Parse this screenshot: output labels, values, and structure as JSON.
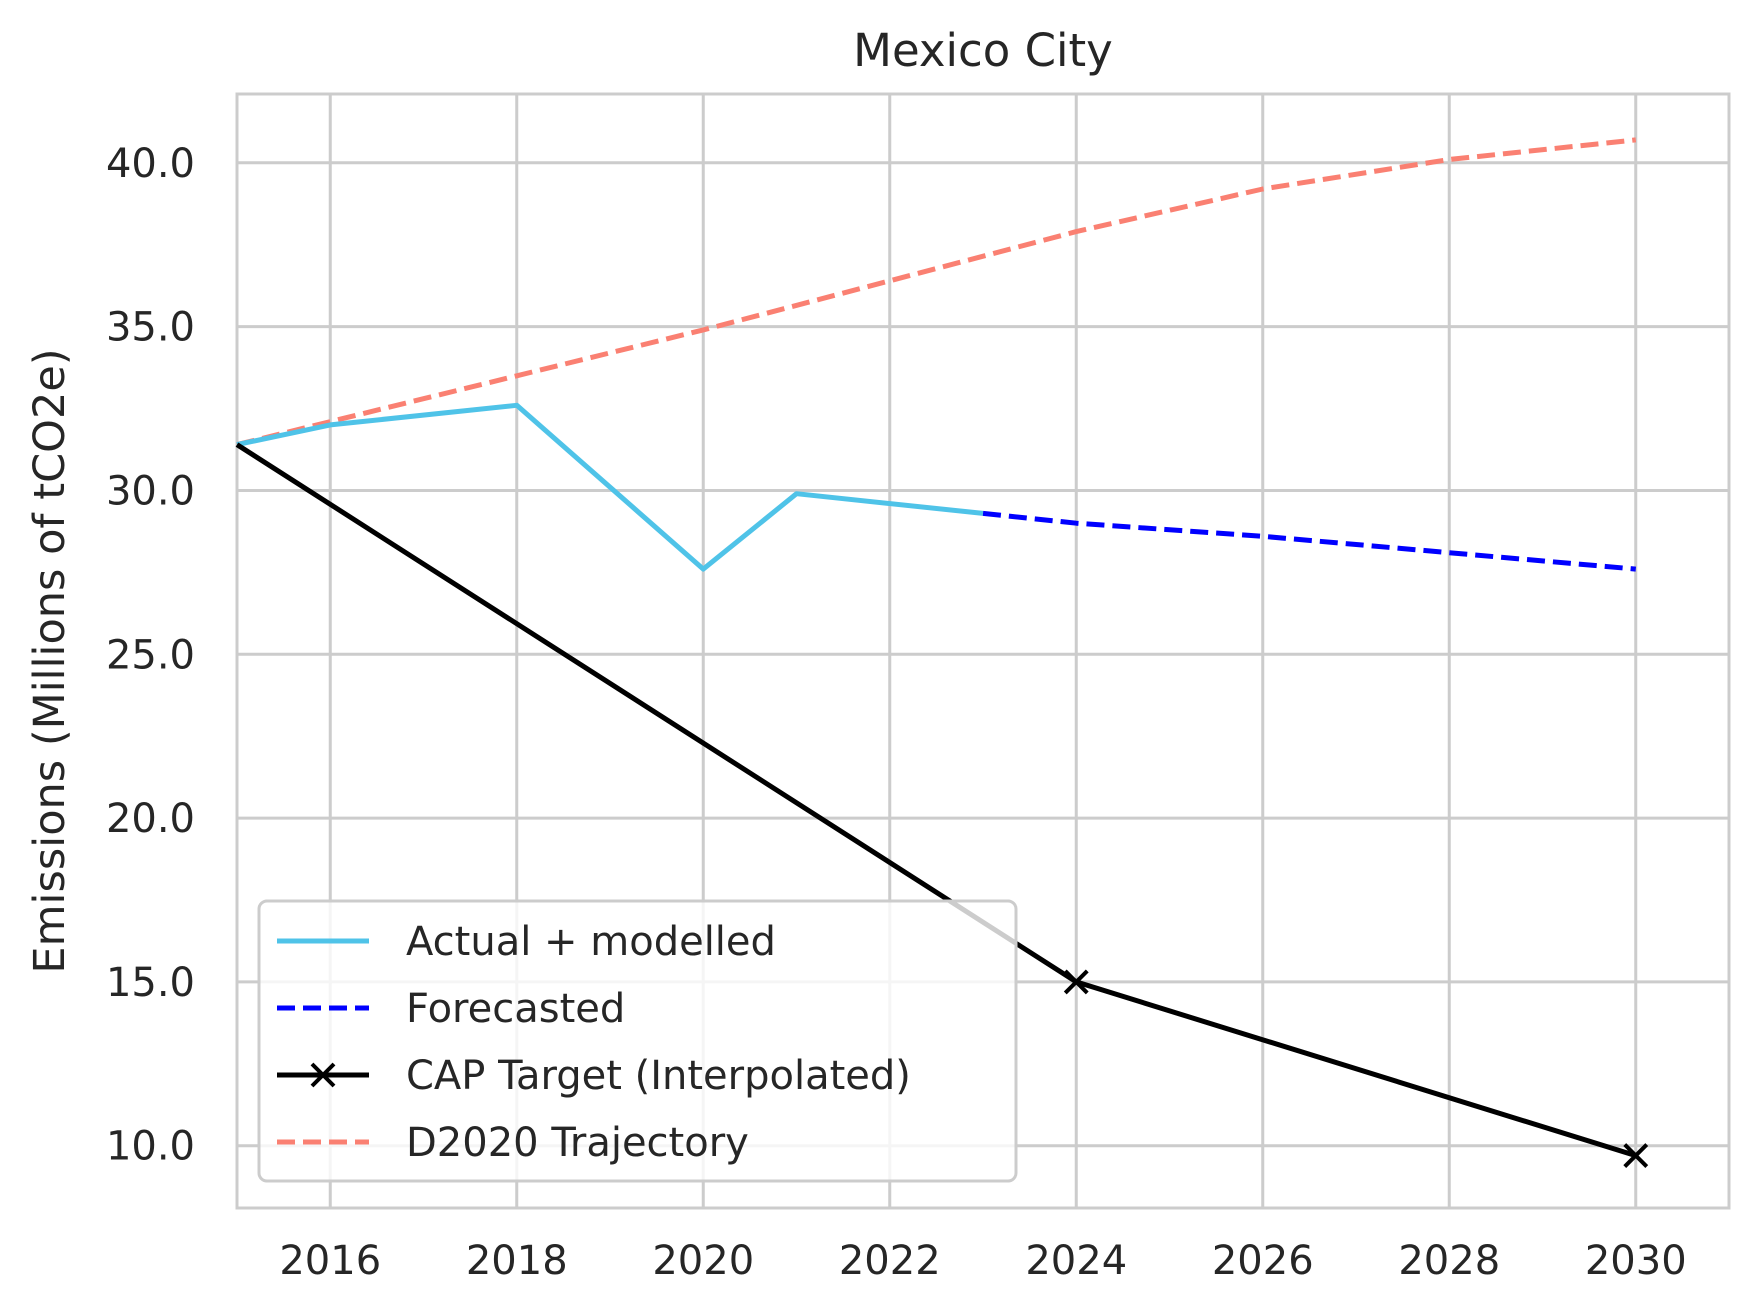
{
  "chart_data": {
    "type": "line",
    "title": "Mexico City",
    "xlabel": "",
    "ylabel": "Emissions (Millions of tCO2e)",
    "xlim": [
      2015,
      2031
    ],
    "ylim": [
      8.1,
      42.1
    ],
    "xticks": [
      2016,
      2018,
      2020,
      2022,
      2024,
      2026,
      2028,
      2030
    ],
    "xtick_labels": [
      "2016",
      "2018",
      "2020",
      "2022",
      "2024",
      "2026",
      "2028",
      "2030"
    ],
    "yticks": [
      10,
      15,
      20,
      25,
      30,
      35,
      40
    ],
    "ytick_labels": [
      "10.0",
      "15.0",
      "20.0",
      "25.0",
      "30.0",
      "35.0",
      "40.0"
    ],
    "grid": true,
    "legend_position": "lower-left",
    "series": [
      {
        "name": "Actual + modelled",
        "color": "#4fc3e8",
        "style": "solid",
        "marker": "none",
        "x": [
          2015,
          2016,
          2018,
          2020,
          2021,
          2023
        ],
        "y": [
          31.4,
          32.0,
          32.6,
          27.6,
          29.9,
          29.3
        ]
      },
      {
        "name": "Forecasted",
        "color": "#0000ff",
        "style": "dashed",
        "marker": "none",
        "x": [
          2023,
          2024,
          2026,
          2028,
          2030
        ],
        "y": [
          29.3,
          29.0,
          28.6,
          28.1,
          27.6
        ]
      },
      {
        "name": "CAP Target (Interpolated)",
        "color": "#000000",
        "style": "solid",
        "marker": "x",
        "marker_x": [
          2024,
          2030
        ],
        "x": [
          2015,
          2024,
          2030
        ],
        "y": [
          31.4,
          15.0,
          9.7
        ]
      },
      {
        "name": "D2020 Trajectory",
        "color": "#fa8072",
        "style": "dashed",
        "marker": "none",
        "x": [
          2015,
          2016,
          2018,
          2020,
          2022,
          2024,
          2026,
          2028,
          2030
        ],
        "y": [
          31.4,
          32.1,
          33.5,
          34.9,
          36.4,
          37.9,
          39.2,
          40.1,
          40.7
        ]
      }
    ]
  }
}
